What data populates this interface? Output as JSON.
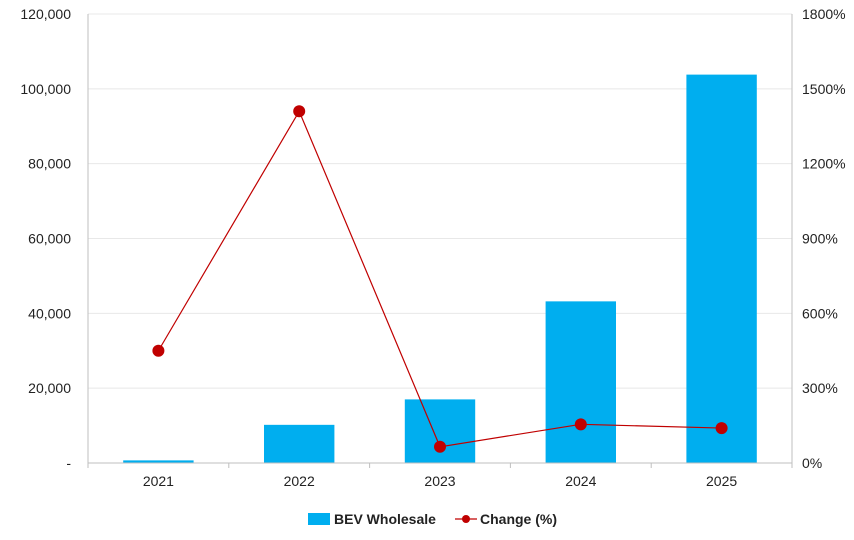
{
  "colors": {
    "bar": "#00AEEF",
    "line": "#C00000",
    "grid": "#E8E8E8",
    "axis": "#BFBFBF"
  },
  "chart_data": {
    "type": "bar",
    "categories": [
      "2021",
      "2022",
      "2023",
      "2024",
      "2025"
    ],
    "series": [
      {
        "name": "BEV Wholesale",
        "type": "bar",
        "axis": "left",
        "values": [
          700,
          10200,
          17000,
          43200,
          103800
        ]
      },
      {
        "name": "Change (%)",
        "type": "line",
        "axis": "right",
        "values": [
          450,
          1410,
          65,
          155,
          140
        ]
      }
    ],
    "y_left": {
      "ylim": [
        0,
        120000
      ],
      "tick_values": [
        0,
        20000,
        40000,
        60000,
        80000,
        100000,
        120000
      ],
      "tick_labels": [
        "-",
        "20,000",
        "40,000",
        "60,000",
        "80,000",
        "100,000",
        "120,000"
      ]
    },
    "y_right": {
      "ylim": [
        0,
        1800
      ],
      "tick_values": [
        0,
        300,
        600,
        900,
        1200,
        1500,
        1800
      ],
      "tick_labels": [
        "0%",
        "300%",
        "600%",
        "900%",
        "1200%",
        "1500%",
        "1800%"
      ]
    },
    "grid": true,
    "legend_position": "bottom-center",
    "legend": {
      "bar_label": "BEV Wholesale",
      "line_label": "Change (%)"
    }
  }
}
